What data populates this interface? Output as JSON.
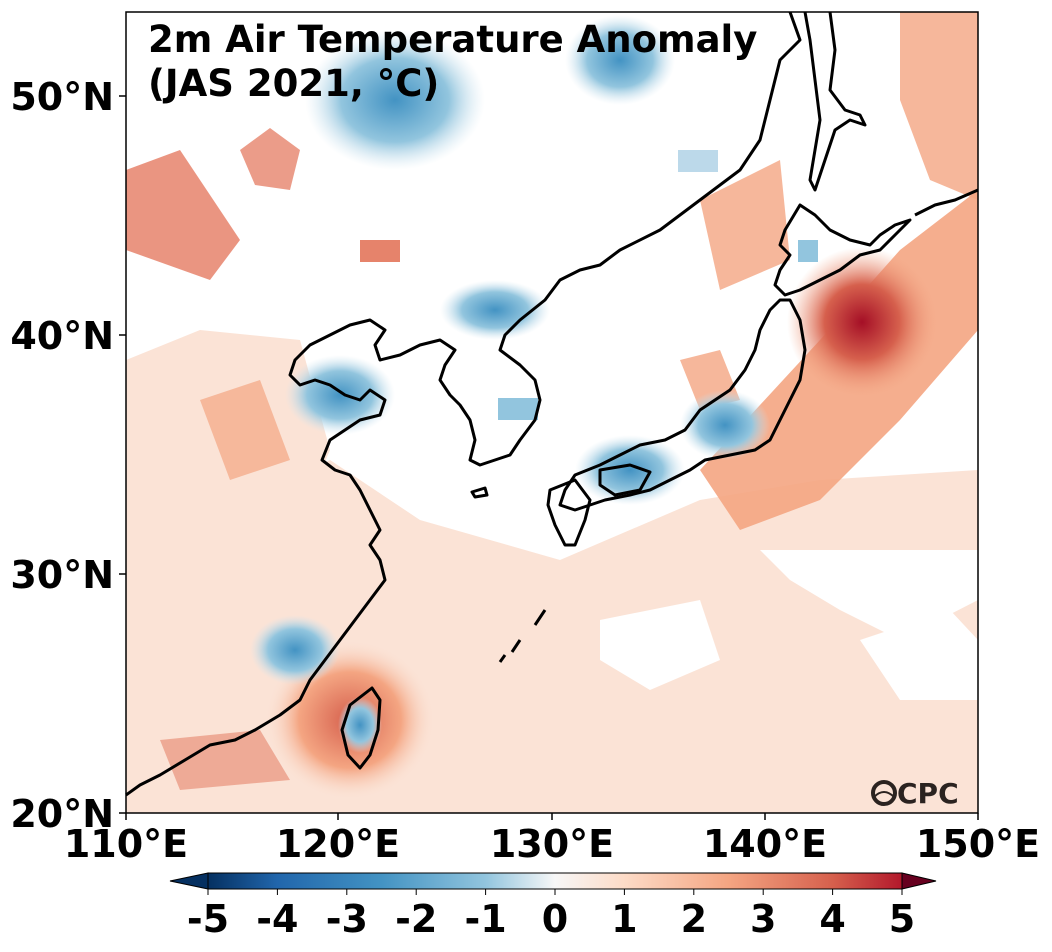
{
  "map": {
    "title_line1": "2m Air Temperature Anomaly",
    "title_line2": "(JAS 2021, °C)",
    "logo_text": "CPC",
    "x_ticks": [
      "110°E",
      "120°E",
      "130°E",
      "140°E",
      "150°E"
    ],
    "y_ticks": [
      "50°N",
      "40°N",
      "30°N",
      "20°N"
    ],
    "lon_range": [
      110,
      150
    ],
    "lat_range": [
      20,
      53.5
    ],
    "colorbar": {
      "ticks": [
        "-5",
        "-4",
        "-3",
        "-2",
        "-1",
        "0",
        "1",
        "2",
        "3",
        "4",
        "5"
      ],
      "range": [
        -5,
        5
      ],
      "colormap": "RdBu_r",
      "extend": "both"
    },
    "colors": {
      "strong_warm": "#a50f26",
      "warm": "#d6604d",
      "light_warm": "#f4a582",
      "pale_warm": "#fbe3d6",
      "pale_cool": "#d1e5f0",
      "cool": "#6baed6",
      "strong_cool": "#2166ac",
      "coast": "#000000"
    }
  }
}
